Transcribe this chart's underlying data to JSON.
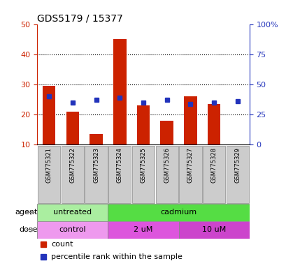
{
  "title": "GDS5179 / 15377",
  "samples": [
    "GSM775321",
    "GSM775322",
    "GSM775323",
    "GSM775324",
    "GSM775325",
    "GSM775326",
    "GSM775327",
    "GSM775328",
    "GSM775329"
  ],
  "red_values": [
    29.5,
    21.0,
    13.5,
    45.0,
    23.0,
    18.0,
    26.0,
    23.5,
    10.0
  ],
  "blue_values": [
    26.0,
    24.0,
    25.0,
    25.5,
    24.0,
    25.0,
    23.5,
    24.0,
    24.5
  ],
  "ylim_left": [
    10,
    50
  ],
  "ylim_right": [
    0,
    100
  ],
  "yticks_left": [
    10,
    20,
    30,
    40,
    50
  ],
  "yticks_right": [
    0,
    25,
    50,
    75,
    100
  ],
  "ytick_labels_right": [
    "0",
    "25",
    "50",
    "75",
    "100%"
  ],
  "bar_color": "#cc2200",
  "blue_color": "#2233bb",
  "agent_groups": [
    {
      "label": "untreated",
      "start": 0,
      "end": 3,
      "color": "#aaeea0"
    },
    {
      "label": "cadmium",
      "start": 3,
      "end": 9,
      "color": "#55dd44"
    }
  ],
  "dose_groups": [
    {
      "label": "control",
      "start": 0,
      "end": 3,
      "color": "#ee99ee"
    },
    {
      "label": "2 uM",
      "start": 3,
      "end": 6,
      "color": "#dd55dd"
    },
    {
      "label": "10 uM",
      "start": 6,
      "end": 9,
      "color": "#cc44cc"
    }
  ],
  "legend_count_label": "count",
  "legend_percentile_label": "percentile rank within the sample",
  "agent_label": "agent",
  "dose_label": "dose",
  "axis_left_color": "#cc2200",
  "axis_right_color": "#2233bb",
  "bar_width": 0.55,
  "baseline": 10,
  "xtick_box_color": "#cccccc",
  "xtick_box_edgecolor": "#999999"
}
